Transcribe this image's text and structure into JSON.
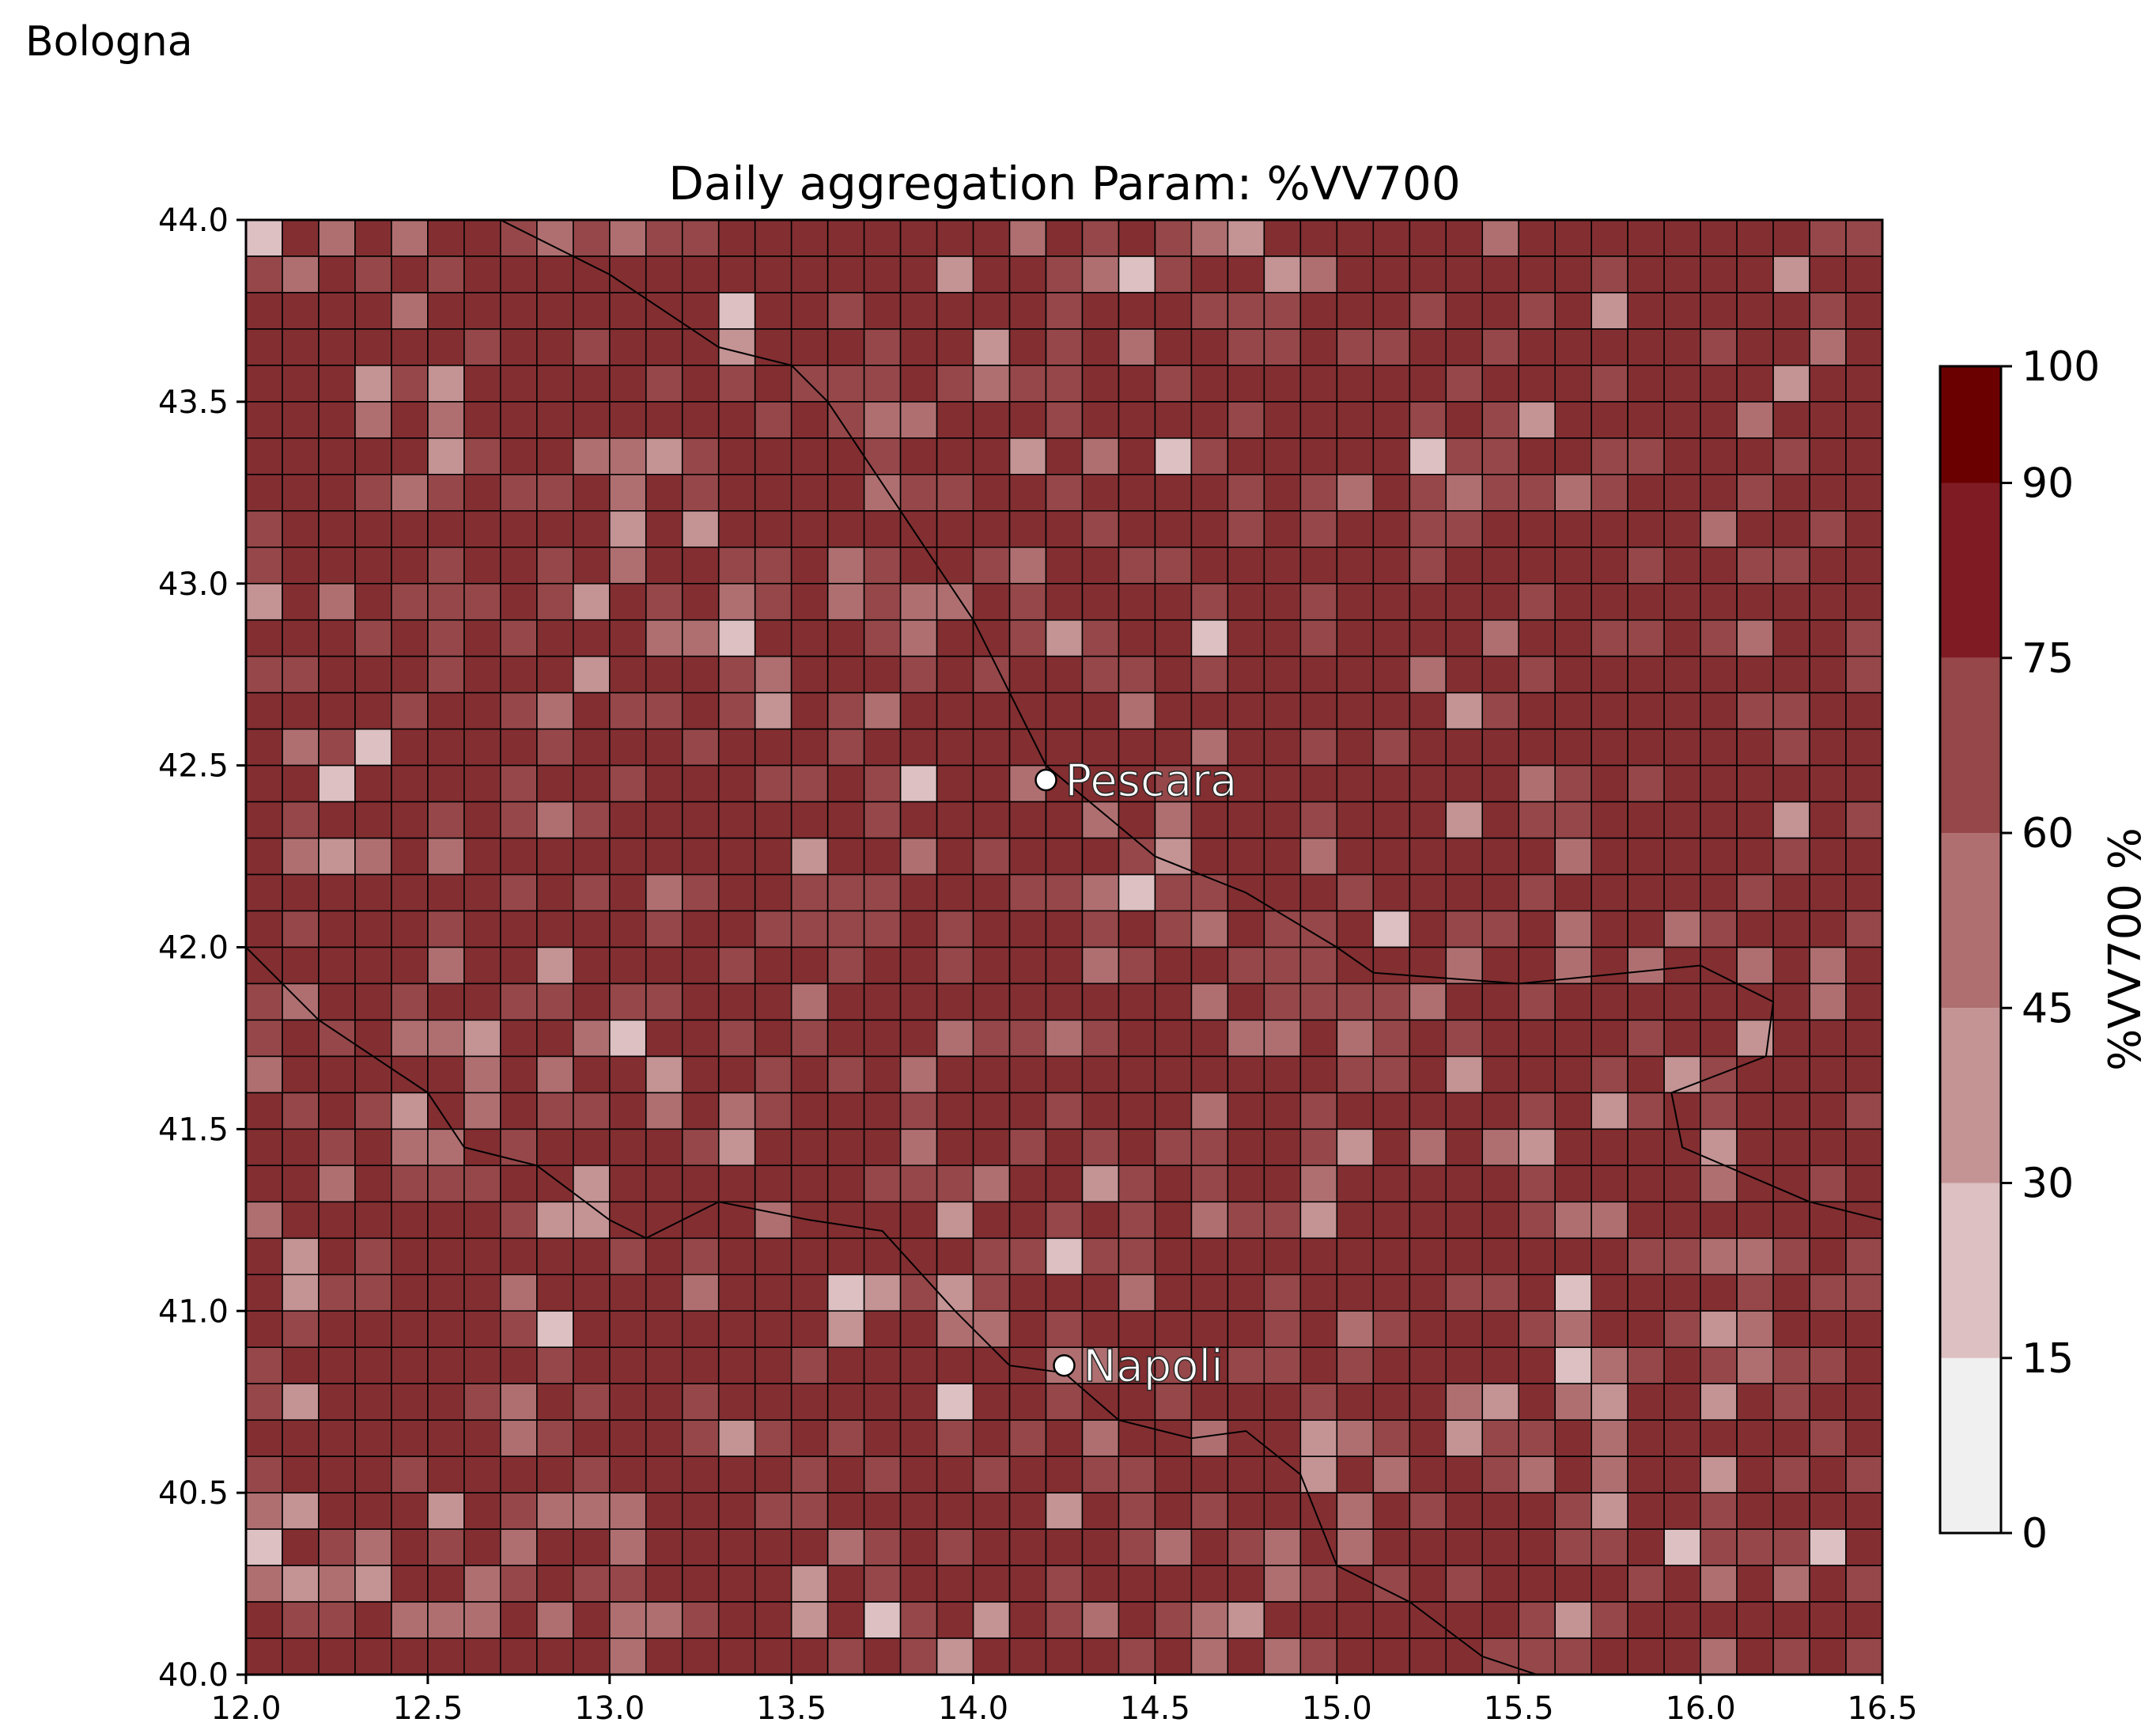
{
  "header": {
    "location_label": "Bologna"
  },
  "map": {
    "title": "Daily aggregation Param: %VV700",
    "extent": {
      "lon_min": 12.0,
      "lon_max": 16.5,
      "lat_min": 40.0,
      "lat_max": 44.0
    },
    "x_ticks": [
      "12.0",
      "12.5",
      "13.0",
      "13.5",
      "14.0",
      "14.5",
      "15.0",
      "15.5",
      "16.0",
      "16.5"
    ],
    "y_ticks": [
      "40.0",
      "40.5",
      "41.0",
      "41.5",
      "42.0",
      "42.5",
      "43.0",
      "43.5",
      "44.0"
    ],
    "grid": {
      "columns": 45,
      "rows": 40,
      "cell_size_deg": 0.1
    },
    "cities": [
      {
        "name": "Pescara",
        "lon": 14.2,
        "lat": 42.46
      },
      {
        "name": "Napoli",
        "lon": 14.25,
        "lat": 40.85
      }
    ]
  },
  "colorbar": {
    "label": "%VV700 %",
    "tick_labels": [
      "0",
      "15",
      "30",
      "45",
      "60",
      "75",
      "90",
      "100"
    ],
    "bounds": [
      0,
      15,
      30,
      45,
      60,
      75,
      90,
      100
    ],
    "colors": [
      "#f0f0f0",
      "#dcc0c2",
      "#c49394",
      "#af6f70",
      "#964749",
      "#7f1b23",
      "#6a0000"
    ]
  },
  "colors": {
    "dominant_cell": "#832e31",
    "coastline": "#000000",
    "cell_edge": "#000000"
  }
}
